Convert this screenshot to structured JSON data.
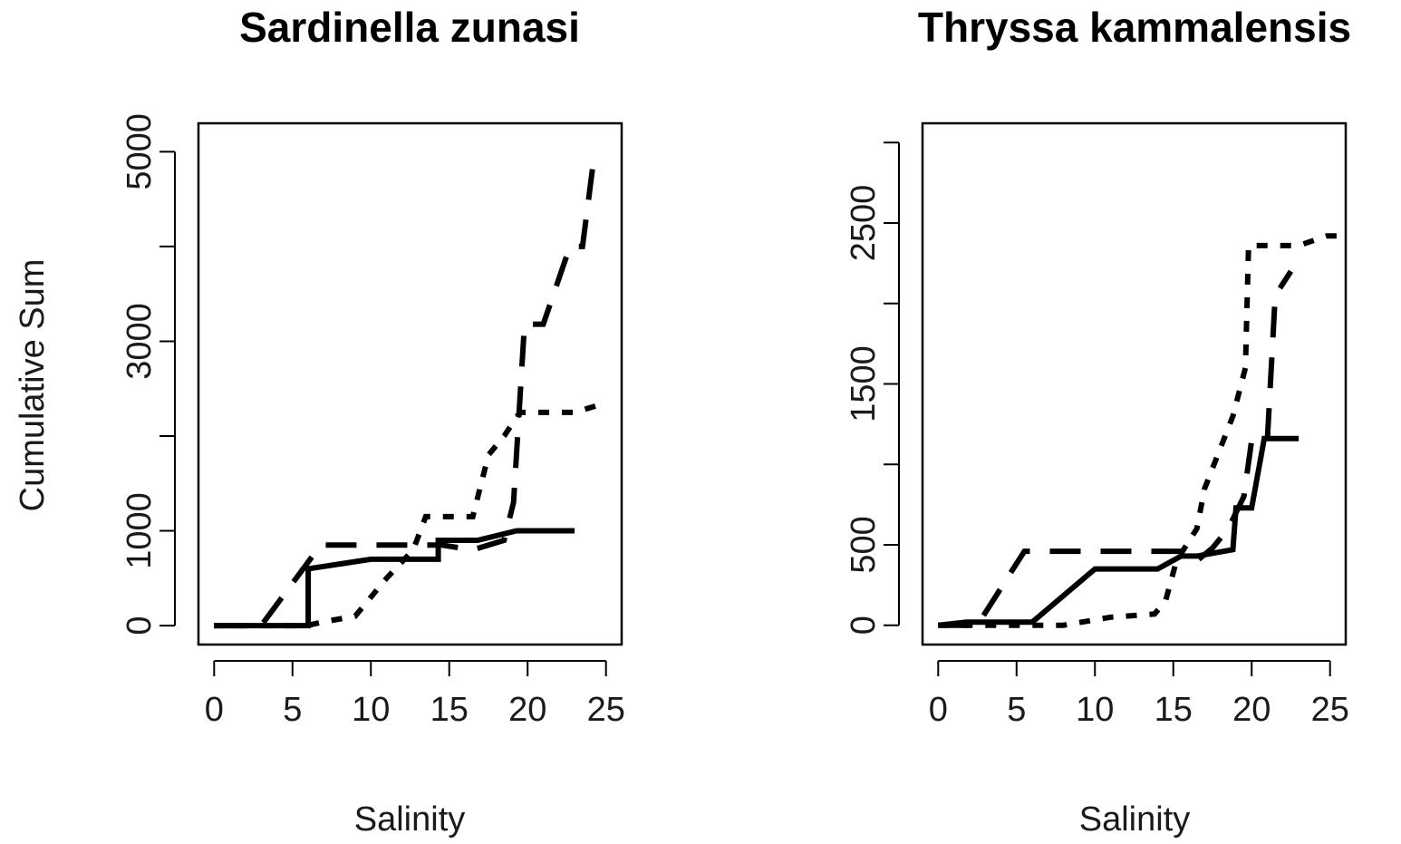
{
  "chart_data": [
    {
      "type": "line",
      "title": "Sardinella zunasi",
      "xlabel": "Salinity",
      "ylabel": "Cumulative Sum",
      "xlim": [
        -1,
        26
      ],
      "ylim": [
        -200,
        5300
      ],
      "x_ticks": [
        0,
        5,
        10,
        15,
        20,
        25
      ],
      "x_tick_labels": [
        "0",
        "5",
        "10",
        "15",
        "20",
        "25"
      ],
      "y_ticks": [
        0,
        1000,
        2000,
        3000,
        4000,
        5000
      ],
      "y_tick_labels": [
        "0",
        "1000",
        "",
        "3000",
        "",
        "5000"
      ],
      "series": [
        {
          "name": "solid",
          "style": "solid",
          "x": [
            0,
            6,
            6,
            10,
            14.3,
            14.3,
            16.8,
            19.3,
            23
          ],
          "y": [
            0,
            0,
            600,
            700,
            700,
            900,
            900,
            1000,
            1000
          ]
        },
        {
          "name": "dashed",
          "style": "dashed",
          "x": [
            0,
            3,
            6.8,
            10,
            13,
            14.5,
            16.5,
            18.5,
            19.1,
            19.8,
            21,
            22.7,
            23.5,
            24.2
          ],
          "y": [
            0,
            0,
            850,
            850,
            850,
            850,
            800,
            900,
            1300,
            3180,
            3180,
            4000,
            4000,
            4900
          ]
        },
        {
          "name": "dotted",
          "style": "dotted",
          "x": [
            0,
            5.9,
            7,
            9,
            11,
            12.7,
            13.5,
            16.5,
            17.5,
            18.5,
            19.5,
            23,
            25
          ],
          "y": [
            0,
            0,
            40,
            100,
            500,
            800,
            1150,
            1150,
            1800,
            2000,
            2250,
            2250,
            2350
          ]
        }
      ]
    },
    {
      "type": "line",
      "title": "Thryssa kammalensis",
      "xlabel": "Salinity",
      "ylabel": "",
      "xlim": [
        -1,
        26
      ],
      "ylim": [
        -120,
        3120
      ],
      "x_ticks": [
        0,
        5,
        10,
        15,
        20,
        25
      ],
      "x_tick_labels": [
        "0",
        "5",
        "10",
        "15",
        "20",
        "25"
      ],
      "y_ticks": [
        0,
        500,
        1000,
        1500,
        2000,
        2500,
        3000
      ],
      "y_tick_labels": [
        "0",
        "500",
        "",
        "1500",
        "",
        "2500",
        ""
      ],
      "series": [
        {
          "name": "solid",
          "style": "solid",
          "x": [
            0,
            1.8,
            6,
            10,
            14,
            15.5,
            16.5,
            18.8,
            19,
            20,
            20.8,
            23
          ],
          "y": [
            0,
            20,
            20,
            350,
            350,
            430,
            430,
            470,
            730,
            730,
            1160,
            1160
          ]
        },
        {
          "name": "dashed",
          "style": "dashed",
          "x": [
            0,
            2.5,
            5.5,
            15.5,
            16.5,
            17.5,
            18.5,
            19.5,
            20,
            21,
            21.5,
            22.5
          ],
          "y": [
            0,
            0,
            460,
            460,
            400,
            480,
            600,
            800,
            1150,
            1150,
            2050,
            2200
          ]
        },
        {
          "name": "dotted",
          "style": "dotted",
          "x": [
            0,
            8,
            11,
            13.8,
            14.5,
            15.2,
            16.5,
            17,
            18.8,
            19.6,
            19.8,
            23,
            24.8,
            26
          ],
          "y": [
            0,
            0,
            50,
            70,
            150,
            400,
            600,
            850,
            1300,
            1600,
            2360,
            2360,
            2420,
            2420
          ]
        }
      ]
    }
  ]
}
